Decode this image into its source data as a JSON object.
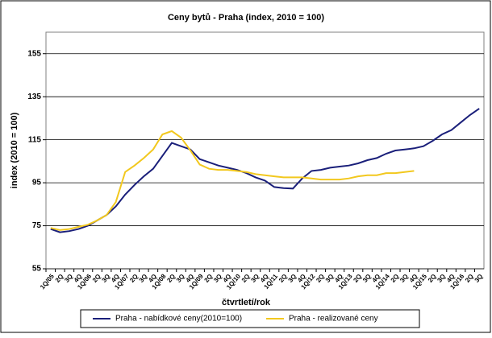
{
  "chart_data": {
    "type": "line",
    "title": "Ceny bytů - Praha (index, 2010 = 100)",
    "y_label": "index (2010 = 100)",
    "x_label": "čtvrtletí/rok",
    "categories": [
      "1Q/05",
      "2Q",
      "3Q",
      "4Q",
      "1Q/06",
      "2Q",
      "3Q",
      "4Q",
      "1Q/07",
      "2Q",
      "3Q",
      "4Q",
      "1Q/08",
      "2Q",
      "3Q",
      "4Q",
      "1Q/09",
      "2Q",
      "3Q",
      "4Q",
      "1Q/10",
      "2Q",
      "3Q",
      "4Q",
      "1Q/11",
      "2Q",
      "3Q",
      "4Q",
      "1Q/12",
      "2Q",
      "3Q",
      "4Q",
      "1Q/13",
      "2Q",
      "3Q",
      "4Q",
      "1Q/14",
      "2Q",
      "3Q",
      "4Q",
      "1Q/15",
      "2Q",
      "3Q",
      "4Q",
      "1Q/16",
      "2Q",
      "3Q"
    ],
    "series": [
      {
        "name": "Praha - nabídkové ceny(2010=100)",
        "color": "#1a1f7a",
        "values": [
          73.5,
          72,
          72.5,
          73.5,
          75,
          77.5,
          80,
          84,
          89.5,
          94,
          98,
          101.5,
          107.5,
          113.5,
          112,
          110.5,
          106,
          104.5,
          103,
          102,
          101,
          99.5,
          97.5,
          96,
          93,
          92.5,
          92.3,
          97,
          100.5,
          101,
          102,
          102.5,
          103,
          104,
          105.5,
          106.5,
          108.5,
          110,
          110.5,
          111,
          112,
          114.5,
          117.5,
          119.5,
          123,
          126.5,
          129.5
        ]
      },
      {
        "name": "Praha - realizované ceny",
        "color": "#f2c81e",
        "values": [
          74,
          73,
          73.5,
          74.5,
          75.5,
          77.5,
          80,
          86,
          100,
          103,
          106.5,
          110.5,
          117.5,
          119,
          116,
          110,
          103.5,
          101.5,
          101,
          101,
          100.5,
          100,
          99,
          98.5,
          98,
          97.5,
          97.5,
          97.5,
          97,
          96.5,
          96.5,
          96.5,
          97,
          98,
          98.5,
          98.5,
          99.5,
          99.5,
          100,
          100.5,
          null,
          null,
          null,
          null,
          null,
          null,
          null
        ]
      }
    ],
    "ylim": [
      55,
      165
    ],
    "yticks": [
      55,
      75,
      95,
      115,
      135,
      155
    ],
    "grid": true,
    "legend": "bottom"
  }
}
